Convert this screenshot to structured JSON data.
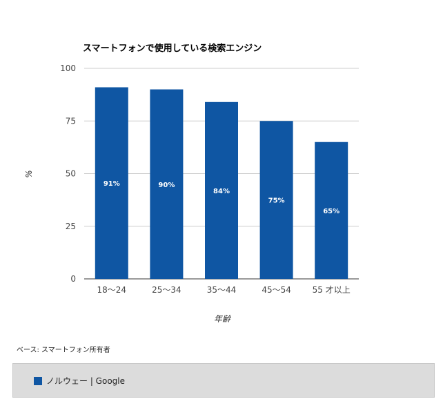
{
  "chart_data": {
    "type": "bar",
    "title": "スマートフォンで使用している検索エンジン",
    "categories": [
      "18〜24",
      "25〜34",
      "35〜44",
      "45〜54",
      "55 才以上"
    ],
    "series": [
      {
        "name": "ノルウェー | Google",
        "values": [
          91,
          90,
          84,
          75,
          65
        ],
        "labels": [
          "91%",
          "90%",
          "84%",
          "75%",
          "65%"
        ],
        "color": "#0f56a3"
      }
    ],
    "xlabel": "年齢",
    "ylabel": "%",
    "ylim": [
      0,
      100
    ],
    "yticks": [
      0,
      25,
      50,
      75,
      100
    ],
    "grid": true,
    "legend_position": "bottom"
  },
  "note": "ベース: スマートフォン所有者",
  "legend": {
    "label": "ノルウェー | Google",
    "color": "#0f56a3"
  }
}
